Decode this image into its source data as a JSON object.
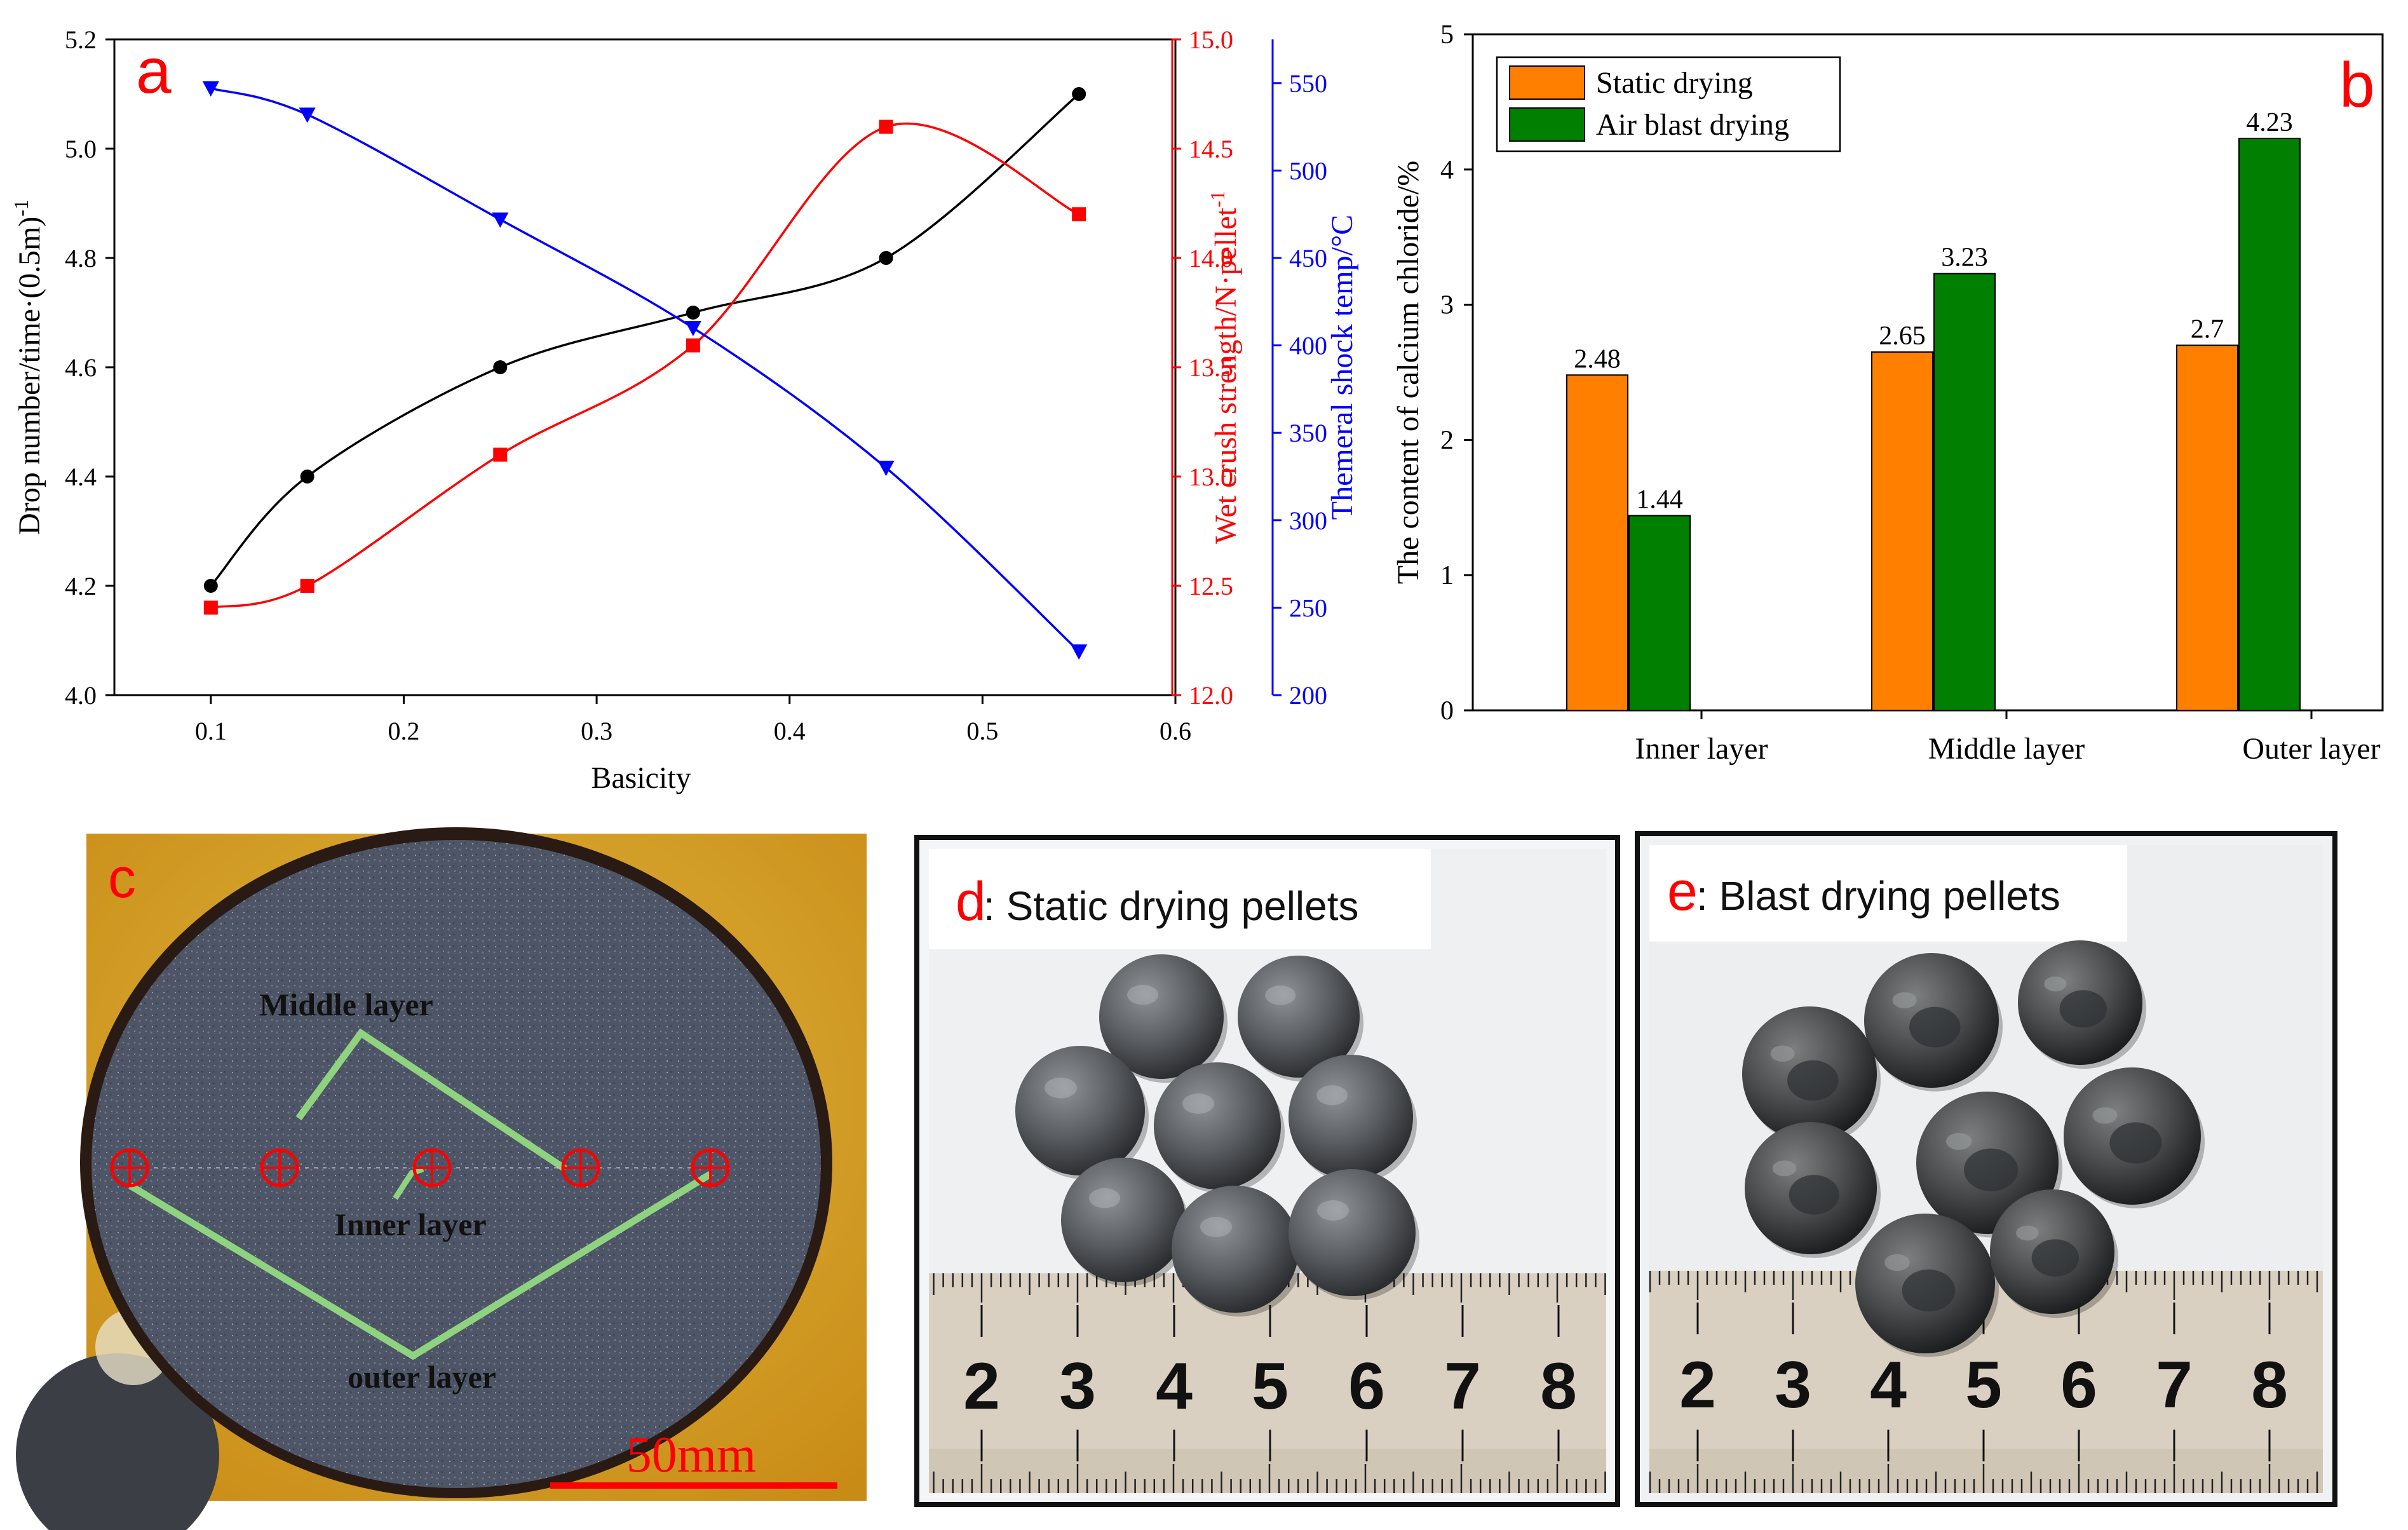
{
  "panel_labels": {
    "a": "a",
    "b": "b",
    "c": "c",
    "d": "d",
    "e": "e"
  },
  "colors": {
    "black": "#000000",
    "red": "#ff0000",
    "blue": "#0000ff",
    "orange": "#ff8000",
    "green": "#007f00",
    "ring_green": "#8fd27f"
  },
  "chart_data": [
    {
      "id": "a",
      "type": "scatter",
      "xlabel": "Basicity",
      "xlim": [
        0.05,
        0.6
      ],
      "xticks": [
        0.1,
        0.2,
        0.3,
        0.4,
        0.5,
        0.6
      ],
      "x_tick_labels": [
        "0.1",
        "0.2",
        "0.3",
        "0.4",
        "0.5",
        "0.6"
      ],
      "y_axes": [
        {
          "side": "left",
          "label": "Drop number/time·(0.5m)",
          "label_sup": "-1",
          "ylim": [
            4.0,
            5.2
          ],
          "ticks": [
            4.0,
            4.2,
            4.4,
            4.6,
            4.8,
            5.0,
            5.2
          ],
          "tick_labels": [
            "4.0",
            "4.2",
            "4.4",
            "4.6",
            "4.8",
            "5.0",
            "5.2"
          ],
          "color": "#000000"
        },
        {
          "side": "right-inner",
          "label": "Wet crush strength/N·pellet",
          "label_sup": "-1",
          "ylim": [
            12.0,
            15.0
          ],
          "ticks": [
            12.0,
            12.5,
            13.0,
            13.5,
            14.0,
            14.5,
            15.0
          ],
          "tick_labels": [
            "12.0",
            "12.5",
            "13.0",
            "13.5",
            "14.0",
            "14.5",
            "15.0"
          ],
          "color": "#ff0000"
        },
        {
          "side": "right-outer",
          "label": "Themeral  shock temp/°C",
          "label_sup": "",
          "ylim": [
            200,
            575
          ],
          "ticks": [
            200,
            250,
            300,
            350,
            400,
            450,
            500,
            550
          ],
          "tick_labels": [
            "200",
            "250",
            "300",
            "350",
            "400",
            "450",
            "500",
            "550"
          ],
          "color": "#0000ff"
        }
      ],
      "series": [
        {
          "name": "Drop number",
          "axis": 0,
          "marker": "circle",
          "color": "#000000",
          "x": [
            0.1,
            0.15,
            0.25,
            0.35,
            0.45,
            0.55
          ],
          "y": [
            4.2,
            4.4,
            4.6,
            4.7,
            4.8,
            5.1
          ]
        },
        {
          "name": "Wet crush strength",
          "axis": 1,
          "marker": "square",
          "color": "#ff0000",
          "x": [
            0.1,
            0.15,
            0.25,
            0.35,
            0.45,
            0.55
          ],
          "y": [
            12.4,
            12.5,
            13.1,
            13.6,
            14.6,
            14.2
          ]
        },
        {
          "name": "Themeral shock temp",
          "axis": 2,
          "marker": "triangle-down",
          "color": "#0000ff",
          "x": [
            0.1,
            0.15,
            0.25,
            0.35,
            0.45,
            0.55
          ],
          "y": [
            547,
            532,
            472,
            410,
            330,
            225
          ]
        }
      ]
    },
    {
      "id": "b",
      "type": "bar",
      "categories": [
        "Inner layer",
        "Middle layer",
        "Outer layer"
      ],
      "ylabel": "The content of calcium chloride/%",
      "ylim": [
        0,
        5
      ],
      "yticks": [
        0,
        1,
        2,
        3,
        4,
        5
      ],
      "y_tick_labels": [
        "0",
        "1",
        "2",
        "3",
        "4",
        "5"
      ],
      "legend_position": "top-left",
      "series": [
        {
          "name": "Static drying",
          "color": "#ff8000",
          "values": [
            2.48,
            2.65,
            2.7
          ],
          "labels": [
            "2.48",
            "2.65",
            "2.7"
          ]
        },
        {
          "name": "Air blast drying",
          "color": "#007f00",
          "values": [
            1.44,
            3.23,
            4.23
          ],
          "labels": [
            "1.44",
            "3.23",
            "4.23"
          ]
        }
      ]
    }
  ],
  "panel_c": {
    "layer_labels": {
      "middle": "Middle layer",
      "inner": "Inner layer",
      "outer": "outer layer"
    },
    "scale_bar": "50mm"
  },
  "panel_d": {
    "letter": "d",
    "caption": ": Static drying pellets",
    "ruler_numbers": [
      "2",
      "3",
      "4",
      "5",
      "6",
      "7",
      "8"
    ]
  },
  "panel_e": {
    "letter": "e",
    "caption": ": Blast drying pellets",
    "ruler_numbers": [
      "2",
      "3",
      "4",
      "5",
      "6",
      "7",
      "8"
    ]
  }
}
